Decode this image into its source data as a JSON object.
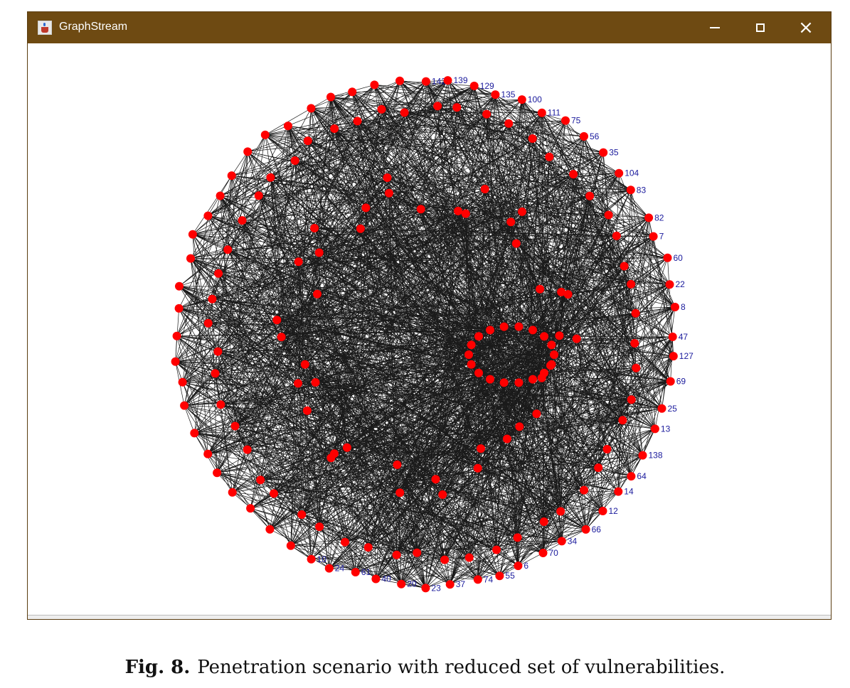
{
  "window": {
    "title": "GraphStream",
    "app_icon": "java-cup-icon",
    "titlebar_color": "#6e4a12",
    "controls": [
      "minimize-icon",
      "maximize-icon",
      "close-icon"
    ]
  },
  "graph": {
    "node_color": "#ff0000",
    "edge_color": "#1a1a1a",
    "label_color": "#1a1a9c",
    "legible_node_labels": [
      "142",
      "139",
      "129",
      "135",
      "100",
      "111",
      "75",
      "56",
      "35",
      "104",
      "83",
      "82",
      "7",
      "60",
      "22",
      "8",
      "47",
      "127",
      "69",
      "25",
      "13",
      "138",
      "64",
      "14",
      "12",
      "66",
      "34",
      "70",
      "6",
      "55",
      "74",
      "37",
      "23",
      "20",
      "40",
      "61",
      "24",
      "10"
    ]
  },
  "caption": {
    "label": "Fig. 8.",
    "text": "Penetration scenario with reduced set of vulnerabilities."
  }
}
